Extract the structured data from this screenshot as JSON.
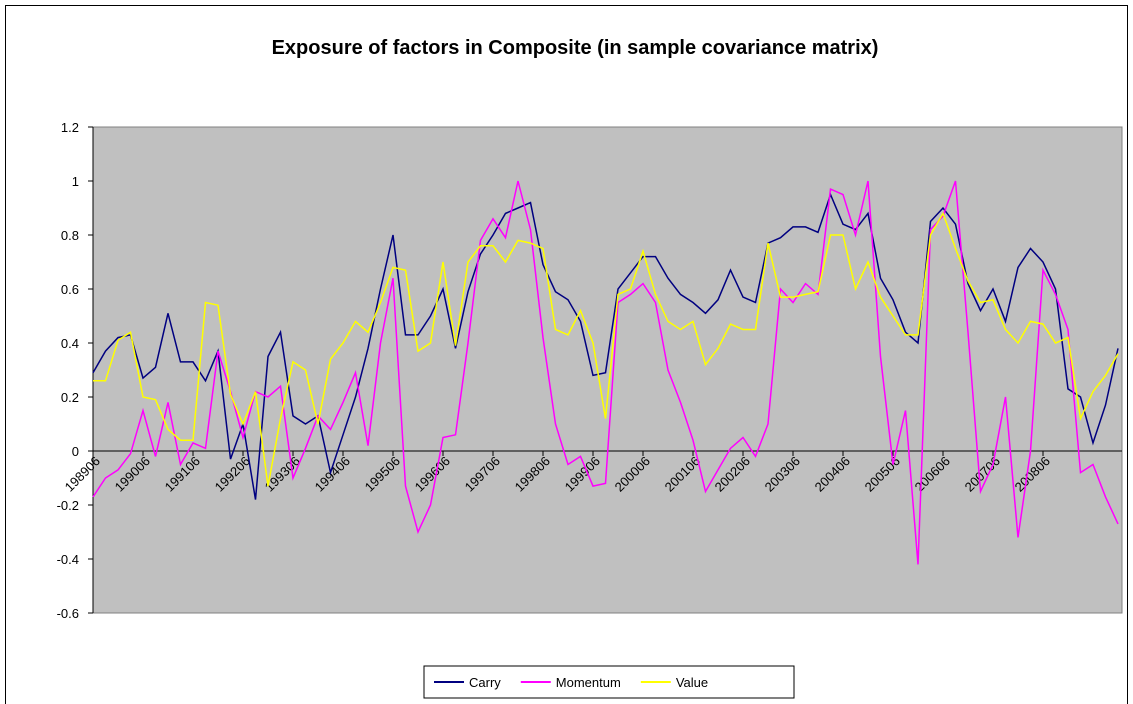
{
  "chart_data": {
    "type": "line",
    "title": "Exposure of factors in Composite (in sample covariance matrix)",
    "categories": [
      "198906",
      null,
      null,
      null,
      "199006",
      null,
      null,
      null,
      "199106",
      null,
      null,
      null,
      "199206",
      null,
      null,
      null,
      "199306",
      null,
      null,
      null,
      "199406",
      null,
      null,
      null,
      "199506",
      null,
      null,
      null,
      "199606",
      null,
      null,
      null,
      "199706",
      null,
      null,
      null,
      "199806",
      null,
      null,
      null,
      "199906",
      null,
      null,
      null,
      "200006",
      null,
      null,
      null,
      "200106",
      null,
      null,
      null,
      "200206",
      null,
      null,
      null,
      "200306",
      null,
      null,
      null,
      "200406",
      null,
      null,
      null,
      "200506",
      null,
      null,
      null,
      "200606",
      null,
      null,
      null,
      "200706",
      null,
      null,
      null,
      "200806",
      null,
      null,
      null,
      null,
      null,
      null
    ],
    "series": [
      {
        "name": "Carry",
        "color": "#000080",
        "values": [
          0.29,
          0.37,
          0.42,
          0.43,
          0.27,
          0.31,
          0.51,
          0.33,
          0.33,
          0.26,
          0.37,
          -0.03,
          0.1,
          -0.18,
          0.35,
          0.44,
          0.13,
          0.1,
          0.13,
          -0.08,
          0.06,
          0.2,
          0.38,
          0.6,
          0.8,
          0.43,
          0.43,
          0.5,
          0.6,
          0.38,
          0.59,
          0.73,
          0.8,
          0.88,
          0.9,
          0.92,
          0.69,
          0.59,
          0.56,
          0.48,
          0.28,
          0.29,
          0.6,
          0.66,
          0.72,
          0.72,
          0.64,
          0.58,
          0.55,
          0.51,
          0.56,
          0.67,
          0.57,
          0.55,
          0.77,
          0.79,
          0.83,
          0.83,
          0.81,
          0.95,
          0.84,
          0.82,
          0.88,
          0.64,
          0.56,
          0.44,
          0.4,
          0.85,
          0.9,
          0.84,
          0.62,
          0.52,
          0.6,
          0.48,
          0.68,
          0.75,
          0.7,
          0.6,
          0.23,
          0.2,
          0.03,
          0.17,
          0.38
        ]
      },
      {
        "name": "Momentum",
        "color": "#ff00ff",
        "values": [
          -0.17,
          -0.1,
          -0.07,
          -0.01,
          0.15,
          -0.02,
          0.18,
          -0.05,
          0.03,
          0.01,
          0.37,
          0.22,
          0.05,
          0.22,
          0.2,
          0.24,
          -0.1,
          0.01,
          0.13,
          0.08,
          0.18,
          0.29,
          0.02,
          0.4,
          0.64,
          -0.13,
          -0.3,
          -0.2,
          0.05,
          0.06,
          0.4,
          0.78,
          0.86,
          0.79,
          1.0,
          0.82,
          0.42,
          0.1,
          -0.05,
          -0.02,
          -0.13,
          -0.12,
          0.55,
          0.58,
          0.62,
          0.55,
          0.3,
          0.18,
          0.04,
          -0.15,
          -0.07,
          0.01,
          0.05,
          -0.02,
          0.1,
          0.6,
          0.55,
          0.62,
          0.58,
          0.97,
          0.95,
          0.8,
          1.0,
          0.35,
          -0.05,
          0.15,
          -0.42,
          0.82,
          0.87,
          1.0,
          0.44,
          -0.15,
          -0.05,
          0.2,
          -0.32,
          0.0,
          0.67,
          0.58,
          0.45,
          -0.08,
          -0.05,
          -0.17,
          -0.27
        ]
      },
      {
        "name": "Value",
        "color": "#ffff00",
        "values": [
          0.26,
          0.26,
          0.41,
          0.44,
          0.2,
          0.19,
          0.08,
          0.04,
          0.04,
          0.55,
          0.54,
          0.21,
          0.1,
          0.22,
          -0.13,
          0.12,
          0.33,
          0.3,
          0.1,
          0.34,
          0.4,
          0.48,
          0.44,
          0.55,
          0.68,
          0.67,
          0.37,
          0.4,
          0.7,
          0.39,
          0.7,
          0.76,
          0.76,
          0.7,
          0.78,
          0.77,
          0.75,
          0.45,
          0.43,
          0.52,
          0.4,
          0.12,
          0.58,
          0.6,
          0.74,
          0.58,
          0.48,
          0.45,
          0.48,
          0.32,
          0.38,
          0.47,
          0.45,
          0.45,
          0.77,
          0.57,
          0.57,
          0.58,
          0.59,
          0.8,
          0.8,
          0.6,
          0.7,
          0.57,
          0.5,
          0.43,
          0.43,
          0.8,
          0.88,
          0.75,
          0.63,
          0.55,
          0.56,
          0.45,
          0.4,
          0.48,
          0.47,
          0.4,
          0.42,
          0.12,
          0.22,
          0.28,
          0.36
        ]
      }
    ],
    "ylim": [
      -0.6,
      1.2
    ],
    "yticks": [
      -0.6,
      -0.4,
      -0.2,
      0,
      0.2,
      0.4,
      0.6,
      0.8,
      1,
      1.2
    ],
    "plot_background": "#c0c0c0",
    "legend": "bottom"
  }
}
